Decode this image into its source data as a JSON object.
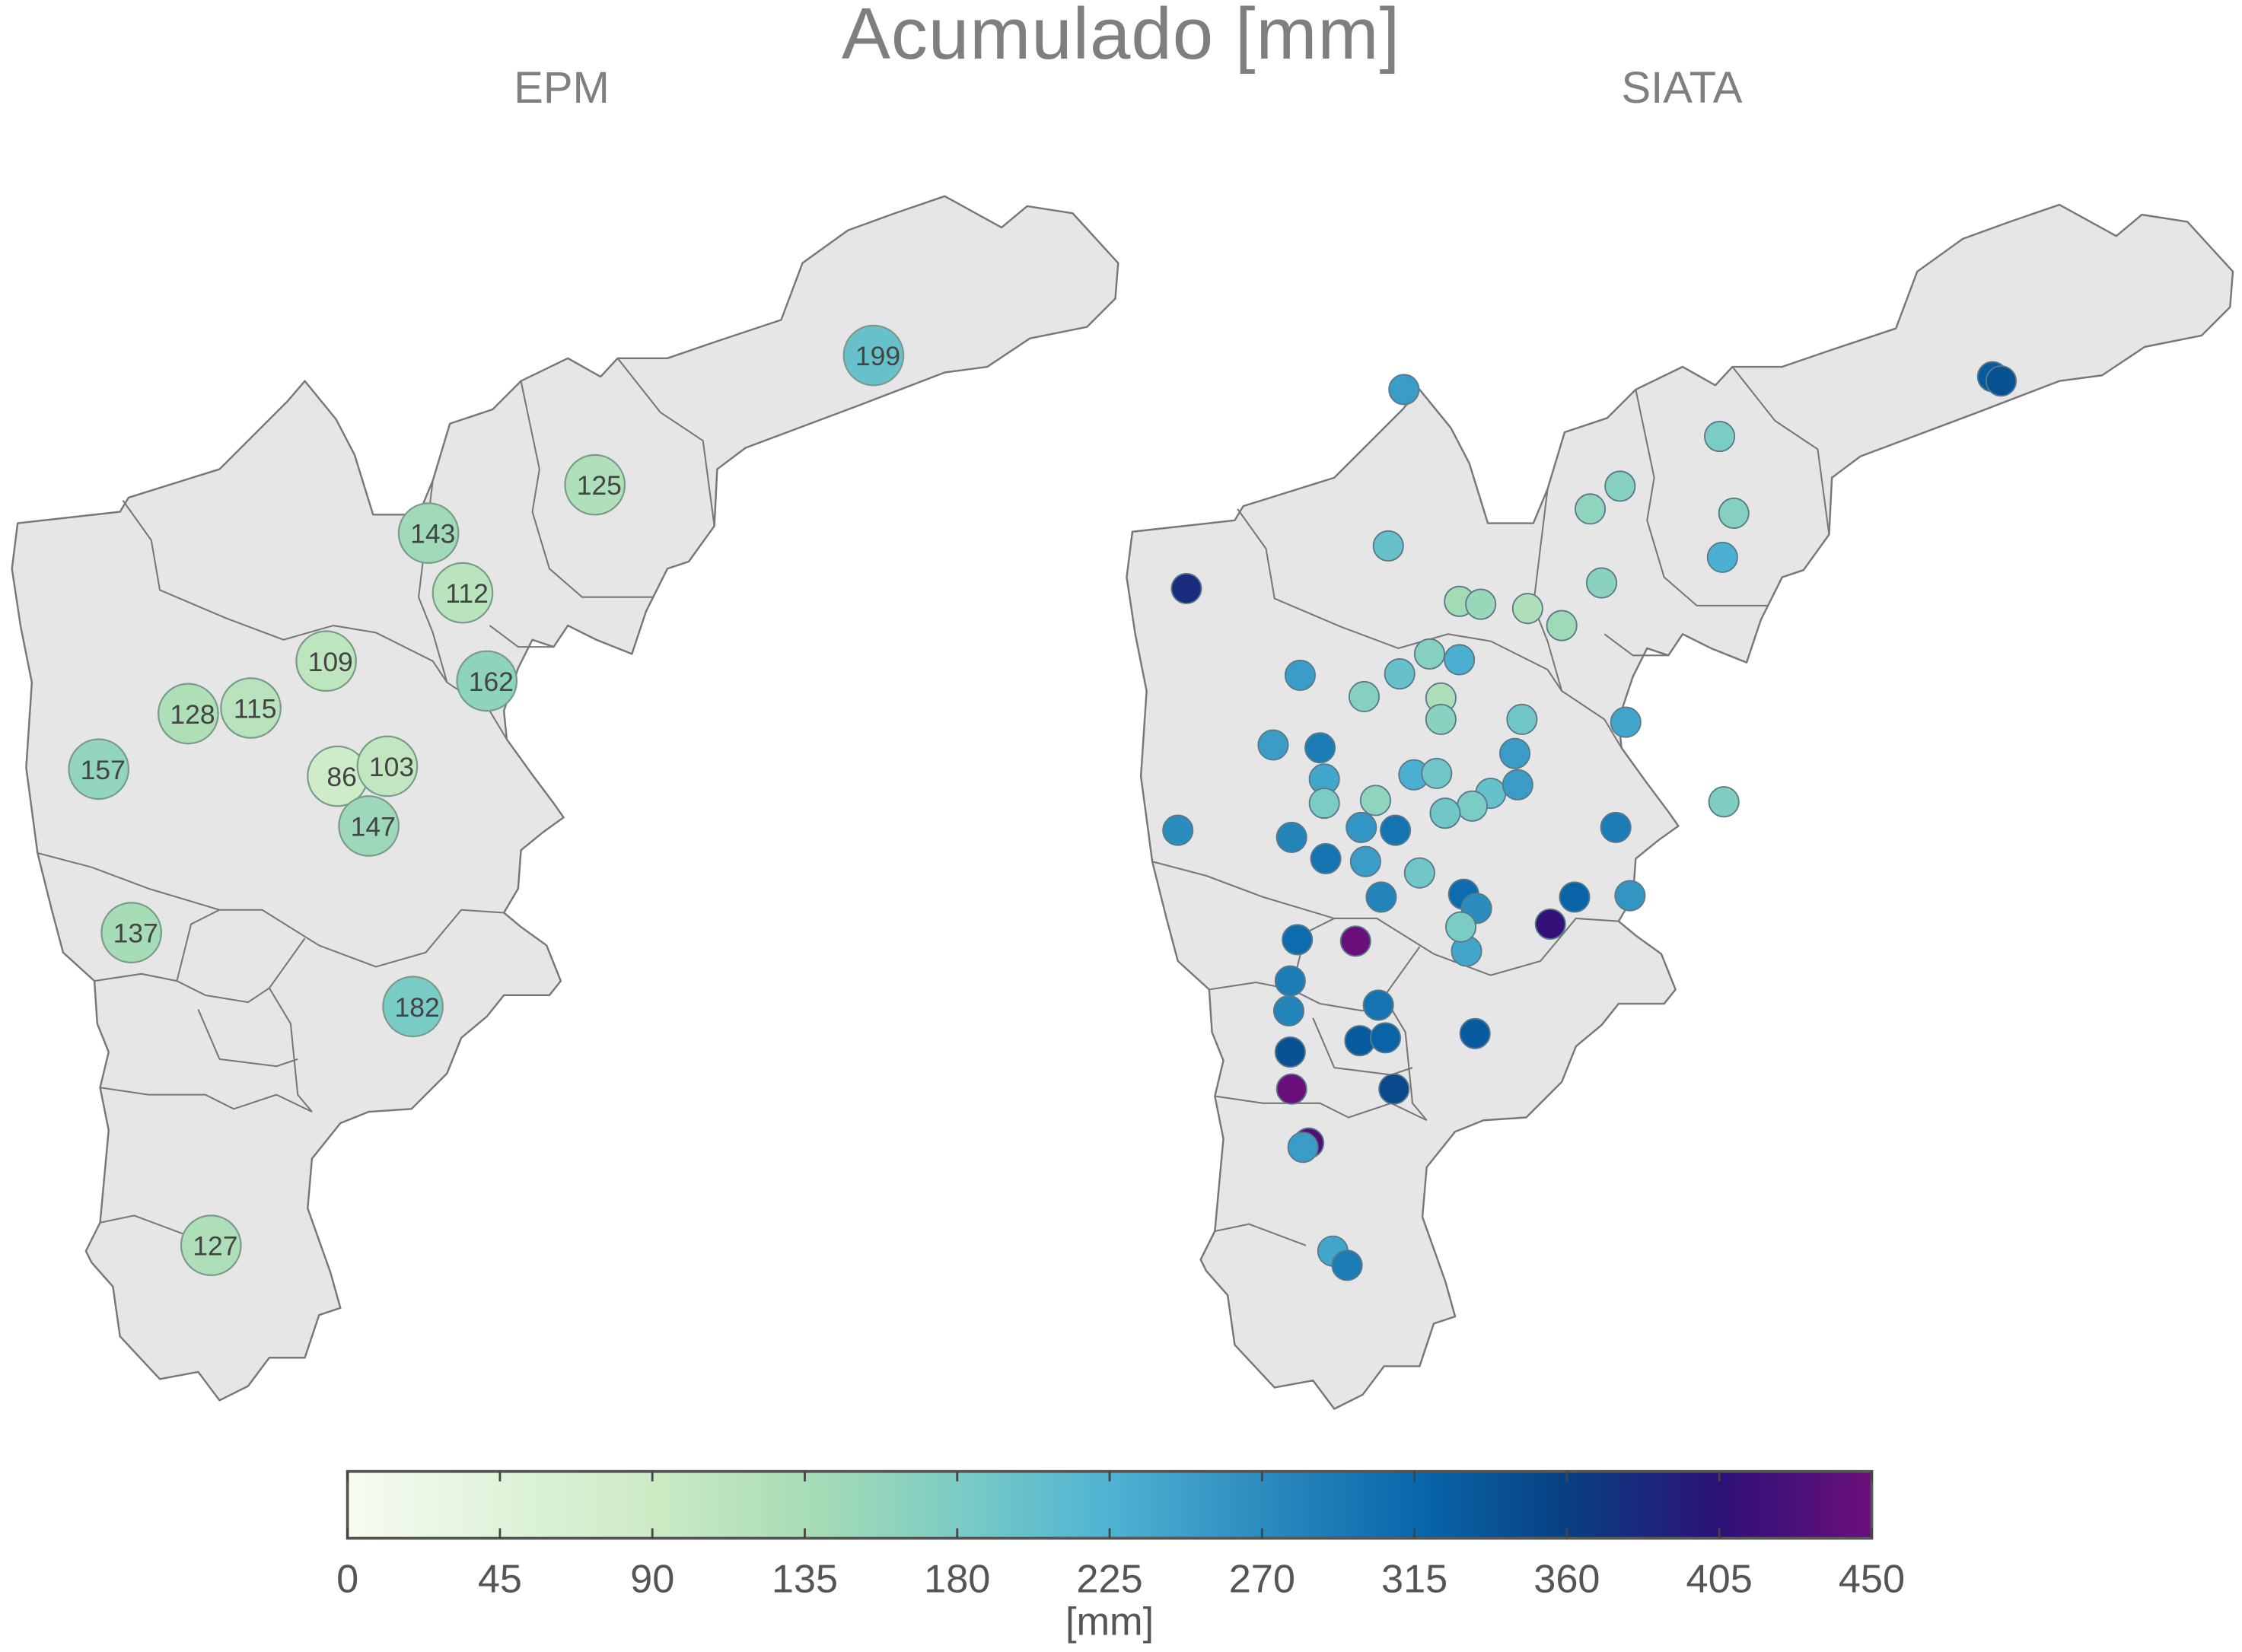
{
  "title": "Acumulado [mm]",
  "panels": {
    "epm": {
      "title": "EPM",
      "stations": [
        {
          "value": 199
        },
        {
          "value": 125
        },
        {
          "value": 143
        },
        {
          "value": 112
        },
        {
          "value": 109
        },
        {
          "value": 162
        },
        {
          "value": 128
        },
        {
          "value": 115
        },
        {
          "value": 157
        },
        {
          "value": 86
        },
        {
          "value": 103
        },
        {
          "value": 147
        },
        {
          "value": 137
        },
        {
          "value": 182
        },
        {
          "value": 127
        }
      ]
    },
    "siata": {
      "title": "SIATA",
      "stations": [
        {
          "value": 250
        },
        {
          "value": 330
        },
        {
          "value": 340
        },
        {
          "value": 180
        },
        {
          "value": 170
        },
        {
          "value": 170
        },
        {
          "value": 160
        },
        {
          "value": 230
        },
        {
          "value": 200
        },
        {
          "value": 380
        },
        {
          "value": 165
        },
        {
          "value": 140
        },
        {
          "value": 150
        },
        {
          "value": 125
        },
        {
          "value": 145
        },
        {
          "value": 170
        },
        {
          "value": 230
        },
        {
          "value": 250
        },
        {
          "value": 200
        },
        {
          "value": 170
        },
        {
          "value": 240
        },
        {
          "value": 130
        },
        {
          "value": 165
        },
        {
          "value": 190
        },
        {
          "value": 250
        },
        {
          "value": 290
        },
        {
          "value": 250
        },
        {
          "value": 240
        },
        {
          "value": 160
        },
        {
          "value": 230
        },
        {
          "value": 190
        },
        {
          "value": 200
        },
        {
          "value": 250
        },
        {
          "value": 180
        },
        {
          "value": 190
        },
        {
          "value": 175
        },
        {
          "value": 180
        },
        {
          "value": 270
        },
        {
          "value": 280
        },
        {
          "value": 260
        },
        {
          "value": 300
        },
        {
          "value": 290
        },
        {
          "value": 190
        },
        {
          "value": 300
        },
        {
          "value": 250
        },
        {
          "value": 280
        },
        {
          "value": 410
        },
        {
          "value": 260
        },
        {
          "value": 460
        },
        {
          "value": 310
        },
        {
          "value": 270
        },
        {
          "value": 240
        },
        {
          "value": 320
        },
        {
          "value": 310
        },
        {
          "value": 290
        },
        {
          "value": 280
        },
        {
          "value": 300
        },
        {
          "value": 330
        },
        {
          "value": 320
        },
        {
          "value": 340
        },
        {
          "value": 460
        },
        {
          "value": 430
        },
        {
          "value": 250
        },
        {
          "value": 350
        },
        {
          "value": 330
        },
        {
          "value": 240
        },
        {
          "value": 290
        },
        {
          "value": 180
        }
      ]
    }
  },
  "colorbar": {
    "label": "[mm]",
    "min": 0,
    "max": 450,
    "ticks": [
      "0",
      "45",
      "90",
      "135",
      "180",
      "225",
      "270",
      "315",
      "360",
      "405",
      "450"
    ],
    "colors": [
      "#f7fcf0",
      "#e0f3db",
      "#ccebc5",
      "#a8ddb5",
      "#7bccc4",
      "#4eb3d3",
      "#2b8cbe",
      "#0868ac",
      "#084081",
      "#2c1178",
      "#6b0f7a"
    ]
  },
  "colors": {
    "map_fill": "#e6e6e6",
    "map_stroke": "#777777",
    "text": "#7f7f7f"
  }
}
